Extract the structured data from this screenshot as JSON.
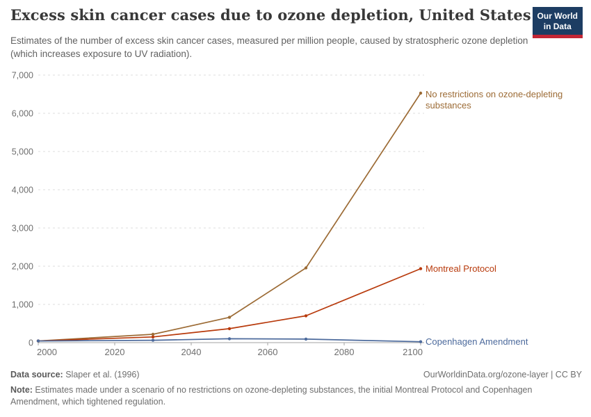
{
  "header": {
    "title": "Excess skin cancer cases due to ozone depletion, United States",
    "subtitle": "Estimates of the number of excess skin cancer cases, measured per million people, caused by stratospheric ozone depletion (which increases exposure to UV radiation).",
    "logo": {
      "line1": "Our World",
      "line2": "in Data",
      "bg_color": "#1d3d63",
      "stripe_color": "#c32635"
    }
  },
  "chart_data": {
    "type": "line",
    "title": "Excess skin cancer cases due to ozone depletion, United States",
    "x": [
      2000,
      2030,
      2050,
      2070,
      2100
    ],
    "series": [
      {
        "name": "No restrictions on ozone-depleting substances",
        "slug": "no-restrictions",
        "label_lines": [
          "No restrictions on ozone-depleting",
          "substances"
        ],
        "color": "#9c6b35",
        "values": [
          44,
          219,
          662,
          1954,
          6528
        ]
      },
      {
        "name": "Montreal Protocol",
        "slug": "montreal-protocol",
        "label_lines": [
          "Montreal Protocol"
        ],
        "color": "#b83a0c",
        "values": [
          44,
          149,
          365,
          702,
          1935
        ]
      },
      {
        "name": "Copenhagen Amendment",
        "slug": "copenhagen-amendment",
        "label_lines": [
          "Copenhagen Amendment"
        ],
        "color": "#4c6a9c",
        "values": [
          44,
          61,
          101,
          93,
          24
        ]
      }
    ],
    "xlabel": "",
    "ylabel": "",
    "xlim": [
      2000,
      2103
    ],
    "ylim": [
      0,
      7000
    ],
    "xticks": [
      2000,
      2020,
      2040,
      2060,
      2080,
      2100
    ],
    "yticks": [
      0,
      1000,
      2000,
      3000,
      4000,
      5000,
      6000,
      7000
    ],
    "grid": "horizontal-dashed",
    "legend_position": "end-of-line labels",
    "axis_color": "#a3a3a3",
    "grid_color": "#dcdcdc",
    "tick_label_color": "#6e6e6e"
  },
  "footer": {
    "source_label": "Data source:",
    "source_value": " Slaper et al. (1996)",
    "attribution": "OurWorldinData.org/ozone-layer | CC BY",
    "note_label": "Note:",
    "note_text": " Estimates made under a scenario of no restrictions on ozone-depleting substances, the initial Montreal Protocol and Copenhagen Amendment, which tightened regulation."
  }
}
